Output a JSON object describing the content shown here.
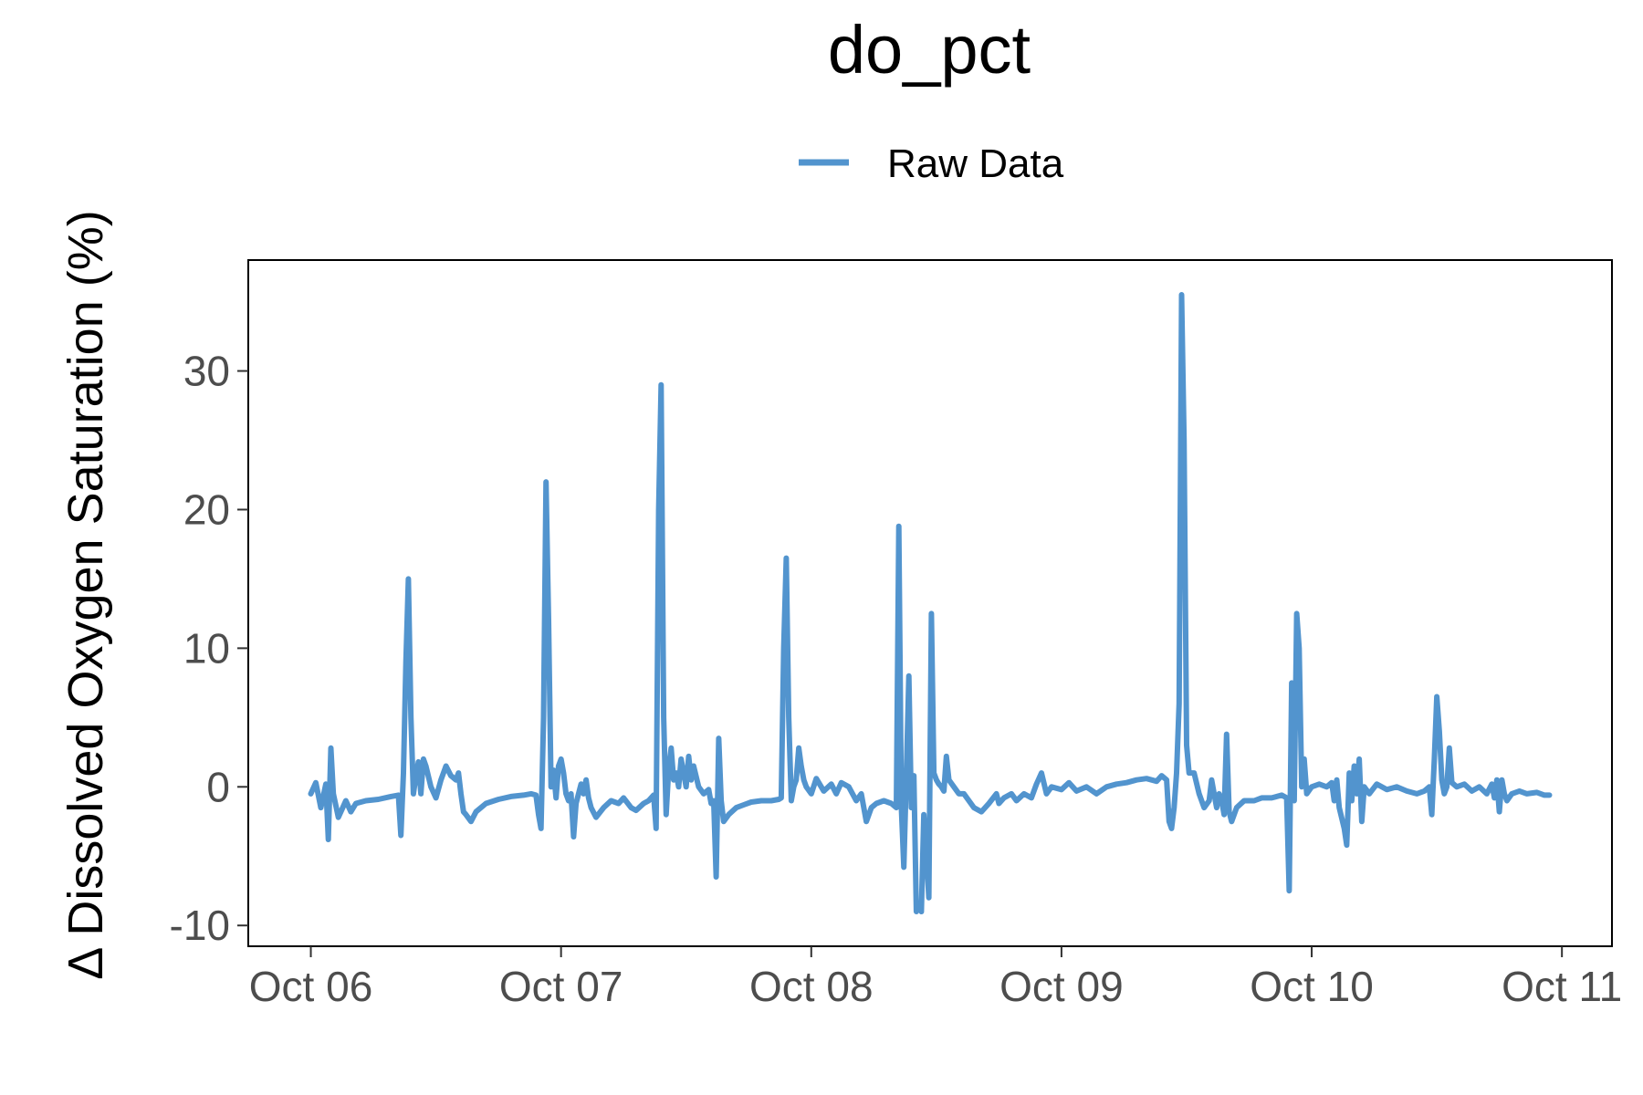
{
  "chart_data": {
    "type": "line",
    "title": "do_pct",
    "xlabel": "",
    "ylabel": "Δ Dissolved Oxygen Saturation (%)",
    "legend": {
      "position": "top",
      "entries": [
        "Raw Data"
      ]
    },
    "grid": false,
    "x_ticks": [
      "Oct 06",
      "Oct 07",
      "Oct 08",
      "Oct 09",
      "Oct 10",
      "Oct 11"
    ],
    "y_ticks": [
      -10,
      0,
      10,
      20,
      30
    ],
    "xlim": [
      -0.25,
      5.2
    ],
    "ylim": [
      -11.5,
      38
    ],
    "x_units": "days since Oct 06",
    "series": [
      {
        "name": "Raw Data",
        "color": "#5294CE",
        "points": [
          [
            0.0,
            -0.5
          ],
          [
            0.02,
            0.3
          ],
          [
            0.04,
            -1.5
          ],
          [
            0.06,
            0.2
          ],
          [
            0.07,
            -3.8
          ],
          [
            0.08,
            2.8
          ],
          [
            0.09,
            -0.5
          ],
          [
            0.11,
            -2.2
          ],
          [
            0.14,
            -1.0
          ],
          [
            0.16,
            -1.8
          ],
          [
            0.18,
            -1.2
          ],
          [
            0.22,
            -1.0
          ],
          [
            0.27,
            -0.9
          ],
          [
            0.32,
            -0.7
          ],
          [
            0.35,
            -0.6
          ],
          [
            0.36,
            -3.5
          ],
          [
            0.37,
            1.0
          ],
          [
            0.38,
            9.0
          ],
          [
            0.39,
            15.0
          ],
          [
            0.4,
            5.0
          ],
          [
            0.41,
            -0.5
          ],
          [
            0.42,
            0.8
          ],
          [
            0.43,
            1.8
          ],
          [
            0.44,
            -0.5
          ],
          [
            0.45,
            2.0
          ],
          [
            0.46,
            1.5
          ],
          [
            0.48,
            0.0
          ],
          [
            0.5,
            -0.8
          ],
          [
            0.52,
            0.5
          ],
          [
            0.54,
            1.5
          ],
          [
            0.56,
            0.8
          ],
          [
            0.58,
            0.5
          ],
          [
            0.59,
            1.0
          ],
          [
            0.6,
            -0.5
          ],
          [
            0.61,
            -1.8
          ],
          [
            0.62,
            -2.0
          ],
          [
            0.64,
            -2.5
          ],
          [
            0.66,
            -1.8
          ],
          [
            0.7,
            -1.2
          ],
          [
            0.75,
            -0.9
          ],
          [
            0.8,
            -0.7
          ],
          [
            0.85,
            -0.6
          ],
          [
            0.88,
            -0.5
          ],
          [
            0.9,
            -0.6
          ],
          [
            0.91,
            -2.0
          ],
          [
            0.92,
            -3.0
          ],
          [
            0.93,
            5.0
          ],
          [
            0.94,
            22.0
          ],
          [
            0.95,
            12.0
          ],
          [
            0.96,
            0.0
          ],
          [
            0.97,
            1.2
          ],
          [
            0.98,
            -0.8
          ],
          [
            0.99,
            1.5
          ],
          [
            1.0,
            2.0
          ],
          [
            1.01,
            1.0
          ],
          [
            1.02,
            -0.5
          ],
          [
            1.03,
            -1.0
          ],
          [
            1.04,
            -0.5
          ],
          [
            1.05,
            -3.6
          ],
          [
            1.06,
            -1.2
          ],
          [
            1.08,
            0.2
          ],
          [
            1.09,
            -0.5
          ],
          [
            1.1,
            0.5
          ],
          [
            1.11,
            -0.8
          ],
          [
            1.12,
            -1.5
          ],
          [
            1.14,
            -2.2
          ],
          [
            1.17,
            -1.5
          ],
          [
            1.2,
            -1.0
          ],
          [
            1.23,
            -1.2
          ],
          [
            1.25,
            -0.8
          ],
          [
            1.28,
            -1.5
          ],
          [
            1.3,
            -1.7
          ],
          [
            1.33,
            -1.2
          ],
          [
            1.35,
            -1.0
          ],
          [
            1.37,
            -0.6
          ],
          [
            1.38,
            -3.0
          ],
          [
            1.39,
            20.0
          ],
          [
            1.4,
            29.0
          ],
          [
            1.41,
            5.0
          ],
          [
            1.42,
            -2.0
          ],
          [
            1.43,
            1.2
          ],
          [
            1.44,
            2.8
          ],
          [
            1.45,
            0.5
          ],
          [
            1.46,
            1.0
          ],
          [
            1.47,
            0.0
          ],
          [
            1.48,
            2.0
          ],
          [
            1.49,
            1.0
          ],
          [
            1.5,
            0.0
          ],
          [
            1.51,
            2.2
          ],
          [
            1.52,
            0.5
          ],
          [
            1.53,
            1.5
          ],
          [
            1.55,
            0.0
          ],
          [
            1.57,
            -0.5
          ],
          [
            1.59,
            -0.2
          ],
          [
            1.6,
            -1.2
          ],
          [
            1.61,
            -1.0
          ],
          [
            1.62,
            -6.5
          ],
          [
            1.63,
            3.5
          ],
          [
            1.64,
            -1.0
          ],
          [
            1.65,
            -2.5
          ],
          [
            1.67,
            -2.0
          ],
          [
            1.7,
            -1.5
          ],
          [
            1.73,
            -1.3
          ],
          [
            1.76,
            -1.1
          ],
          [
            1.8,
            -1.0
          ],
          [
            1.84,
            -1.0
          ],
          [
            1.87,
            -0.9
          ],
          [
            1.88,
            -0.8
          ],
          [
            1.89,
            10.0
          ],
          [
            1.9,
            16.5
          ],
          [
            1.91,
            5.0
          ],
          [
            1.92,
            -1.0
          ],
          [
            1.93,
            0.0
          ],
          [
            1.94,
            0.5
          ],
          [
            1.95,
            2.8
          ],
          [
            1.96,
            1.5
          ],
          [
            1.97,
            0.5
          ],
          [
            1.98,
            0.0
          ],
          [
            2.0,
            -0.5
          ],
          [
            2.02,
            0.6
          ],
          [
            2.05,
            -0.3
          ],
          [
            2.08,
            0.2
          ],
          [
            2.1,
            -0.5
          ],
          [
            2.12,
            0.3
          ],
          [
            2.15,
            0.0
          ],
          [
            2.18,
            -1.0
          ],
          [
            2.2,
            -0.5
          ],
          [
            2.22,
            -2.5
          ],
          [
            2.24,
            -1.5
          ],
          [
            2.26,
            -1.2
          ],
          [
            2.29,
            -1.0
          ],
          [
            2.32,
            -1.2
          ],
          [
            2.34,
            -1.5
          ],
          [
            2.35,
            18.8
          ],
          [
            2.36,
            -1.5
          ],
          [
            2.37,
            -5.8
          ],
          [
            2.38,
            1.0
          ],
          [
            2.39,
            8.0
          ],
          [
            2.4,
            -1.5
          ],
          [
            2.41,
            0.8
          ],
          [
            2.42,
            -9.0
          ],
          [
            2.43,
            -8.5
          ],
          [
            2.44,
            -9.0
          ],
          [
            2.45,
            -2.0
          ],
          [
            2.46,
            -5.0
          ],
          [
            2.47,
            -8.0
          ],
          [
            2.48,
            12.5
          ],
          [
            2.49,
            1.0
          ],
          [
            2.5,
            0.5
          ],
          [
            2.51,
            0.2
          ],
          [
            2.52,
            0.0
          ],
          [
            2.53,
            -0.3
          ],
          [
            2.54,
            2.2
          ],
          [
            2.55,
            0.5
          ],
          [
            2.57,
            0.0
          ],
          [
            2.59,
            -0.5
          ],
          [
            2.61,
            -0.5
          ],
          [
            2.63,
            -1.0
          ],
          [
            2.65,
            -1.5
          ],
          [
            2.68,
            -1.8
          ],
          [
            2.71,
            -1.2
          ],
          [
            2.74,
            -0.5
          ],
          [
            2.75,
            -1.2
          ],
          [
            2.77,
            -0.8
          ],
          [
            2.8,
            -0.5
          ],
          [
            2.82,
            -1.0
          ],
          [
            2.85,
            -0.5
          ],
          [
            2.88,
            -0.8
          ],
          [
            2.9,
            0.2
          ],
          [
            2.92,
            1.0
          ],
          [
            2.94,
            -0.5
          ],
          [
            2.96,
            0.0
          ],
          [
            3.0,
            -0.2
          ],
          [
            3.03,
            0.3
          ],
          [
            3.06,
            -0.3
          ],
          [
            3.1,
            0.0
          ],
          [
            3.14,
            -0.5
          ],
          [
            3.18,
            0.0
          ],
          [
            3.22,
            0.2
          ],
          [
            3.26,
            0.3
          ],
          [
            3.3,
            0.5
          ],
          [
            3.34,
            0.6
          ],
          [
            3.38,
            0.4
          ],
          [
            3.4,
            0.8
          ],
          [
            3.42,
            0.5
          ],
          [
            3.43,
            -2.5
          ],
          [
            3.44,
            -3.0
          ],
          [
            3.45,
            -1.5
          ],
          [
            3.46,
            1.0
          ],
          [
            3.47,
            6.0
          ],
          [
            3.48,
            35.5
          ],
          [
            3.49,
            25.0
          ],
          [
            3.5,
            3.0
          ],
          [
            3.51,
            1.0
          ],
          [
            3.53,
            1.0
          ],
          [
            3.55,
            -0.5
          ],
          [
            3.57,
            -1.5
          ],
          [
            3.59,
            -1.0
          ],
          [
            3.6,
            0.5
          ],
          [
            3.62,
            -1.5
          ],
          [
            3.63,
            -0.5
          ],
          [
            3.64,
            -1.0
          ],
          [
            3.65,
            -2.0
          ],
          [
            3.66,
            3.8
          ],
          [
            3.67,
            -1.8
          ],
          [
            3.68,
            -2.5
          ],
          [
            3.7,
            -1.5
          ],
          [
            3.73,
            -1.0
          ],
          [
            3.77,
            -1.0
          ],
          [
            3.8,
            -0.8
          ],
          [
            3.84,
            -0.8
          ],
          [
            3.88,
            -0.6
          ],
          [
            3.9,
            -0.8
          ],
          [
            3.91,
            -7.5
          ],
          [
            3.92,
            7.5
          ],
          [
            3.93,
            -1.0
          ],
          [
            3.94,
            12.5
          ],
          [
            3.95,
            10.0
          ],
          [
            3.96,
            0.0
          ],
          [
            3.97,
            2.0
          ],
          [
            3.98,
            -0.5
          ],
          [
            4.0,
            0.0
          ],
          [
            4.03,
            0.2
          ],
          [
            4.06,
            0.0
          ],
          [
            4.08,
            0.3
          ],
          [
            4.09,
            -1.0
          ],
          [
            4.1,
            0.5
          ],
          [
            4.11,
            -1.5
          ],
          [
            4.13,
            -3.0
          ],
          [
            4.14,
            -4.2
          ],
          [
            4.15,
            1.0
          ],
          [
            4.16,
            -1.0
          ],
          [
            4.17,
            1.5
          ],
          [
            4.18,
            -0.5
          ],
          [
            4.19,
            2.0
          ],
          [
            4.2,
            -2.5
          ],
          [
            4.21,
            0.0
          ],
          [
            4.23,
            -0.5
          ],
          [
            4.26,
            0.2
          ],
          [
            4.3,
            -0.2
          ],
          [
            4.34,
            0.0
          ],
          [
            4.38,
            -0.3
          ],
          [
            4.42,
            -0.5
          ],
          [
            4.45,
            -0.3
          ],
          [
            4.47,
            0.0
          ],
          [
            4.48,
            -2.0
          ],
          [
            4.49,
            2.0
          ],
          [
            4.5,
            6.5
          ],
          [
            4.51,
            4.0
          ],
          [
            4.52,
            0.5
          ],
          [
            4.53,
            -0.5
          ],
          [
            4.54,
            0.0
          ],
          [
            4.55,
            2.8
          ],
          [
            4.56,
            0.3
          ],
          [
            4.58,
            0.0
          ],
          [
            4.61,
            0.2
          ],
          [
            4.64,
            -0.3
          ],
          [
            4.67,
            0.0
          ],
          [
            4.7,
            -0.5
          ],
          [
            4.72,
            0.2
          ],
          [
            4.73,
            -0.8
          ],
          [
            4.74,
            0.5
          ],
          [
            4.75,
            -1.8
          ],
          [
            4.76,
            0.5
          ],
          [
            4.77,
            -0.5
          ],
          [
            4.78,
            -1.0
          ],
          [
            4.8,
            -0.5
          ],
          [
            4.83,
            -0.3
          ],
          [
            4.86,
            -0.5
          ],
          [
            4.9,
            -0.4
          ],
          [
            4.93,
            -0.6
          ],
          [
            4.95,
            -0.6
          ]
        ]
      }
    ]
  }
}
